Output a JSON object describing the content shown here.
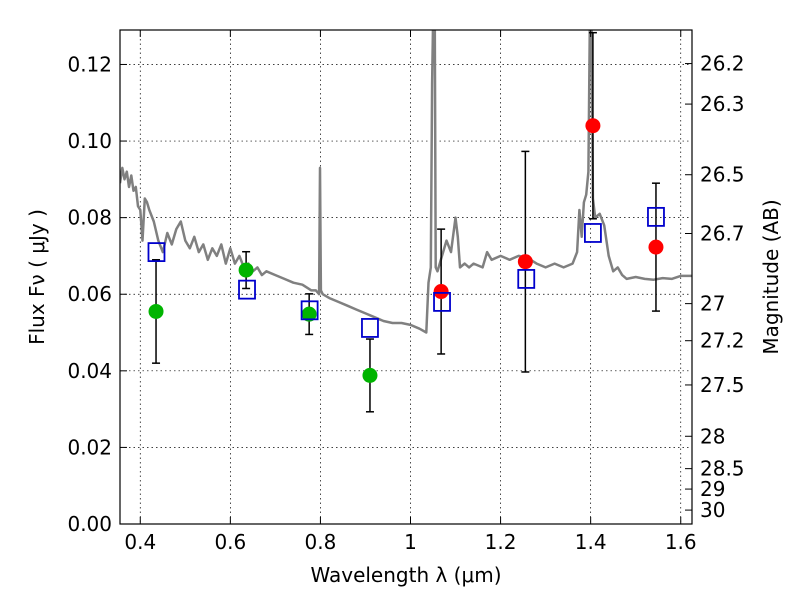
{
  "chart_data": {
    "type": "scatter",
    "xlabel": "Wavelength  λ (μm)",
    "ylabel": "Flux  Fν  ( μJy )",
    "y2label": "Magnitude (AB)",
    "xlim": [
      0.355,
      1.625
    ],
    "ylim": [
      0.0,
      0.129
    ],
    "grid": true,
    "x_ticks": [
      {
        "value": 0.4,
        "label": "0.4"
      },
      {
        "value": 0.6,
        "label": "0.6"
      },
      {
        "value": 0.8,
        "label": "0.8"
      },
      {
        "value": 1.0,
        "label": "1"
      },
      {
        "value": 1.2,
        "label": "1.2"
      },
      {
        "value": 1.4,
        "label": "1.4"
      },
      {
        "value": 1.6,
        "label": "1.6"
      }
    ],
    "y_ticks": [
      {
        "value": 0.0,
        "label": "0.00"
      },
      {
        "value": 0.02,
        "label": "0.02"
      },
      {
        "value": 0.04,
        "label": "0.04"
      },
      {
        "value": 0.06,
        "label": "0.06"
      },
      {
        "value": 0.08,
        "label": "0.08"
      },
      {
        "value": 0.1,
        "label": "0.10"
      },
      {
        "value": 0.12,
        "label": "0.12"
      }
    ],
    "mag_ticks": [
      {
        "mag": 26.2,
        "label": "26.2"
      },
      {
        "mag": 26.3,
        "label": "26.3"
      },
      {
        "mag": 26.5,
        "label": "26.5"
      },
      {
        "mag": 26.7,
        "label": "26.7"
      },
      {
        "mag": 27.0,
        "label": "27"
      },
      {
        "mag": 27.2,
        "label": "27.2"
      },
      {
        "mag": 27.5,
        "label": "27.5"
      },
      {
        "mag": 28.0,
        "label": "28"
      },
      {
        "mag": 28.5,
        "label": "28.5"
      },
      {
        "mag": 29.0,
        "label": "29"
      },
      {
        "mag": 30.0,
        "label": "30"
      }
    ],
    "model_spectrum": {
      "color": "#808080",
      "points": [
        [
          0.355,
          0.089
        ],
        [
          0.36,
          0.093
        ],
        [
          0.365,
          0.09
        ],
        [
          0.37,
          0.092
        ],
        [
          0.375,
          0.088
        ],
        [
          0.38,
          0.091
        ],
        [
          0.385,
          0.087
        ],
        [
          0.39,
          0.088
        ],
        [
          0.395,
          0.083
        ],
        [
          0.4,
          0.082
        ],
        [
          0.405,
          0.074
        ],
        [
          0.41,
          0.085
        ],
        [
          0.415,
          0.084
        ],
        [
          0.42,
          0.082
        ],
        [
          0.43,
          0.079
        ],
        [
          0.44,
          0.074
        ],
        [
          0.45,
          0.071
        ],
        [
          0.46,
          0.076
        ],
        [
          0.47,
          0.073
        ],
        [
          0.48,
          0.077
        ],
        [
          0.49,
          0.079
        ],
        [
          0.5,
          0.074
        ],
        [
          0.51,
          0.072
        ],
        [
          0.52,
          0.075
        ],
        [
          0.53,
          0.071
        ],
        [
          0.54,
          0.073
        ],
        [
          0.55,
          0.069
        ],
        [
          0.56,
          0.072
        ],
        [
          0.57,
          0.07
        ],
        [
          0.58,
          0.073
        ],
        [
          0.59,
          0.068
        ],
        [
          0.6,
          0.072
        ],
        [
          0.61,
          0.068
        ],
        [
          0.62,
          0.07
        ],
        [
          0.63,
          0.067
        ],
        [
          0.64,
          0.068
        ],
        [
          0.65,
          0.066
        ],
        [
          0.66,
          0.067
        ],
        [
          0.67,
          0.065
        ],
        [
          0.68,
          0.066
        ],
        [
          0.7,
          0.065
        ],
        [
          0.72,
          0.064
        ],
        [
          0.74,
          0.063
        ],
        [
          0.76,
          0.0625
        ],
        [
          0.78,
          0.061
        ],
        [
          0.79,
          0.061
        ],
        [
          0.797,
          0.06
        ],
        [
          0.799,
          0.093
        ],
        [
          0.801,
          0.061
        ],
        [
          0.805,
          0.06
        ],
        [
          0.82,
          0.059
        ],
        [
          0.84,
          0.058
        ],
        [
          0.86,
          0.057
        ],
        [
          0.88,
          0.056
        ],
        [
          0.9,
          0.055
        ],
        [
          0.92,
          0.054
        ],
        [
          0.94,
          0.053
        ],
        [
          0.96,
          0.0525
        ],
        [
          0.98,
          0.0525
        ],
        [
          1.0,
          0.052
        ],
        [
          1.02,
          0.051
        ],
        [
          1.035,
          0.05
        ],
        [
          1.04,
          0.063
        ],
        [
          1.045,
          0.067
        ],
        [
          1.048,
          0.115
        ],
        [
          1.05,
          0.13
        ],
        [
          1.054,
          0.13
        ],
        [
          1.056,
          0.067
        ],
        [
          1.06,
          0.066
        ],
        [
          1.07,
          0.07
        ],
        [
          1.08,
          0.074
        ],
        [
          1.09,
          0.071
        ],
        [
          1.1,
          0.08
        ],
        [
          1.105,
          0.075
        ],
        [
          1.11,
          0.067
        ],
        [
          1.12,
          0.068
        ],
        [
          1.13,
          0.067
        ],
        [
          1.14,
          0.068
        ],
        [
          1.16,
          0.067
        ],
        [
          1.17,
          0.071
        ],
        [
          1.18,
          0.069
        ],
        [
          1.2,
          0.07
        ],
        [
          1.22,
          0.069
        ],
        [
          1.24,
          0.07
        ],
        [
          1.26,
          0.0695
        ],
        [
          1.28,
          0.068
        ],
        [
          1.3,
          0.067
        ],
        [
          1.32,
          0.068
        ],
        [
          1.34,
          0.067
        ],
        [
          1.36,
          0.068
        ],
        [
          1.37,
          0.071
        ],
        [
          1.375,
          0.082
        ],
        [
          1.38,
          0.075
        ],
        [
          1.385,
          0.084
        ],
        [
          1.39,
          0.086
        ],
        [
          1.395,
          0.092
        ],
        [
          1.398,
          0.13
        ],
        [
          1.402,
          0.13
        ],
        [
          1.405,
          0.085
        ],
        [
          1.41,
          0.08
        ],
        [
          1.42,
          0.081
        ],
        [
          1.43,
          0.078
        ],
        [
          1.44,
          0.07
        ],
        [
          1.45,
          0.066
        ],
        [
          1.46,
          0.067
        ],
        [
          1.47,
          0.065
        ],
        [
          1.48,
          0.064
        ],
        [
          1.5,
          0.0645
        ],
        [
          1.52,
          0.064
        ],
        [
          1.54,
          0.0638
        ],
        [
          1.56,
          0.0642
        ],
        [
          1.58,
          0.064
        ],
        [
          1.6,
          0.0648
        ],
        [
          1.625,
          0.0648
        ]
      ]
    },
    "observed_points": [
      {
        "x": 0.435,
        "y": 0.0555,
        "yerr": 0.0135,
        "color": "#00b400"
      },
      {
        "x": 0.635,
        "y": 0.0663,
        "yerr": 0.0048,
        "color": "#00b400"
      },
      {
        "x": 0.775,
        "y": 0.0548,
        "yerr": 0.0053,
        "color": "#00b400"
      },
      {
        "x": 0.91,
        "y": 0.0388,
        "yerr": 0.0095,
        "color": "#00b400"
      },
      {
        "x": 1.068,
        "y": 0.0607,
        "yerr": 0.0163,
        "color": "#ff0000"
      },
      {
        "x": 1.255,
        "y": 0.0685,
        "yerr": 0.0288,
        "color": "#ff0000"
      },
      {
        "x": 1.405,
        "y": 0.104,
        "yerr": 0.0243,
        "color": "#ff0000"
      },
      {
        "x": 1.545,
        "y": 0.0723,
        "yerr": 0.0167,
        "color": "#ff0000"
      }
    ],
    "model_photometry": {
      "color": "#0000cc",
      "points": [
        {
          "x": 0.436,
          "y": 0.071
        },
        {
          "x": 0.637,
          "y": 0.0612
        },
        {
          "x": 0.776,
          "y": 0.0558
        },
        {
          "x": 0.91,
          "y": 0.0512
        },
        {
          "x": 1.07,
          "y": 0.058
        },
        {
          "x": 1.257,
          "y": 0.064
        },
        {
          "x": 1.405,
          "y": 0.076
        },
        {
          "x": 1.545,
          "y": 0.0802
        }
      ]
    }
  }
}
